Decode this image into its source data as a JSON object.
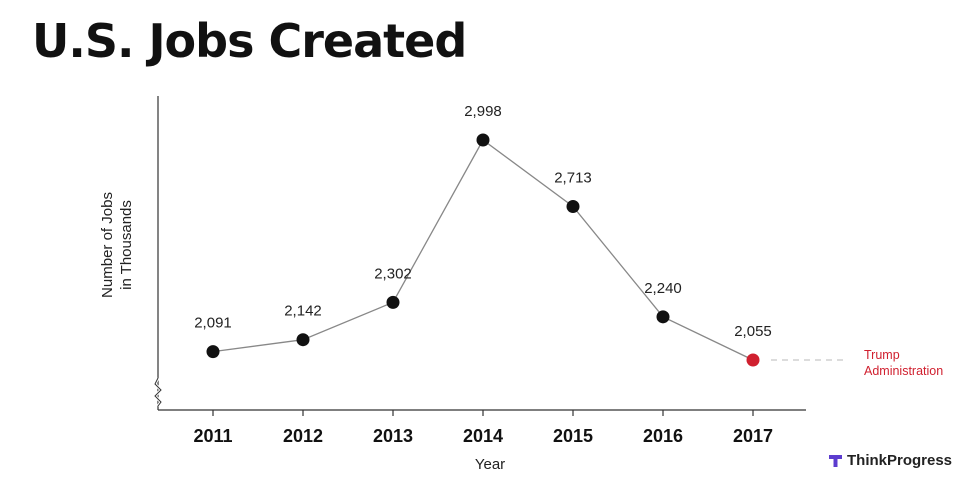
{
  "title": "U.S. Jobs Created",
  "brand": {
    "name": "ThinkProgress",
    "mark_icon": "tp-t-icon"
  },
  "colors": {
    "point": "#111111",
    "highlight": "#d0202f",
    "line": "#888888",
    "axis": "#333333",
    "brand_mark": "#5c3ccf",
    "annotation_leader": "#c8c8c8"
  },
  "chart_data": {
    "type": "line",
    "title": "U.S. Jobs Created",
    "xlabel": "Year",
    "ylabel": "Number of Jobs in Thousands",
    "ylabel_lines": [
      "Number of Jobs",
      "in Thousands"
    ],
    "categories": [
      "2011",
      "2012",
      "2013",
      "2014",
      "2015",
      "2016",
      "2017"
    ],
    "series": [
      {
        "values": [
          2091,
          2142,
          2302,
          2998,
          2713,
          2240,
          2055
        ],
        "labels": [
          "2,091",
          "2,142",
          "2,302",
          "2,998",
          "2,713",
          "2,240",
          "2,055"
        ]
      }
    ],
    "highlight_index": 6,
    "annotation": {
      "lines": [
        "Trump",
        "Administration"
      ],
      "point_index": 6
    },
    "y_axis_break": true,
    "grid": false,
    "legend": "none"
  }
}
